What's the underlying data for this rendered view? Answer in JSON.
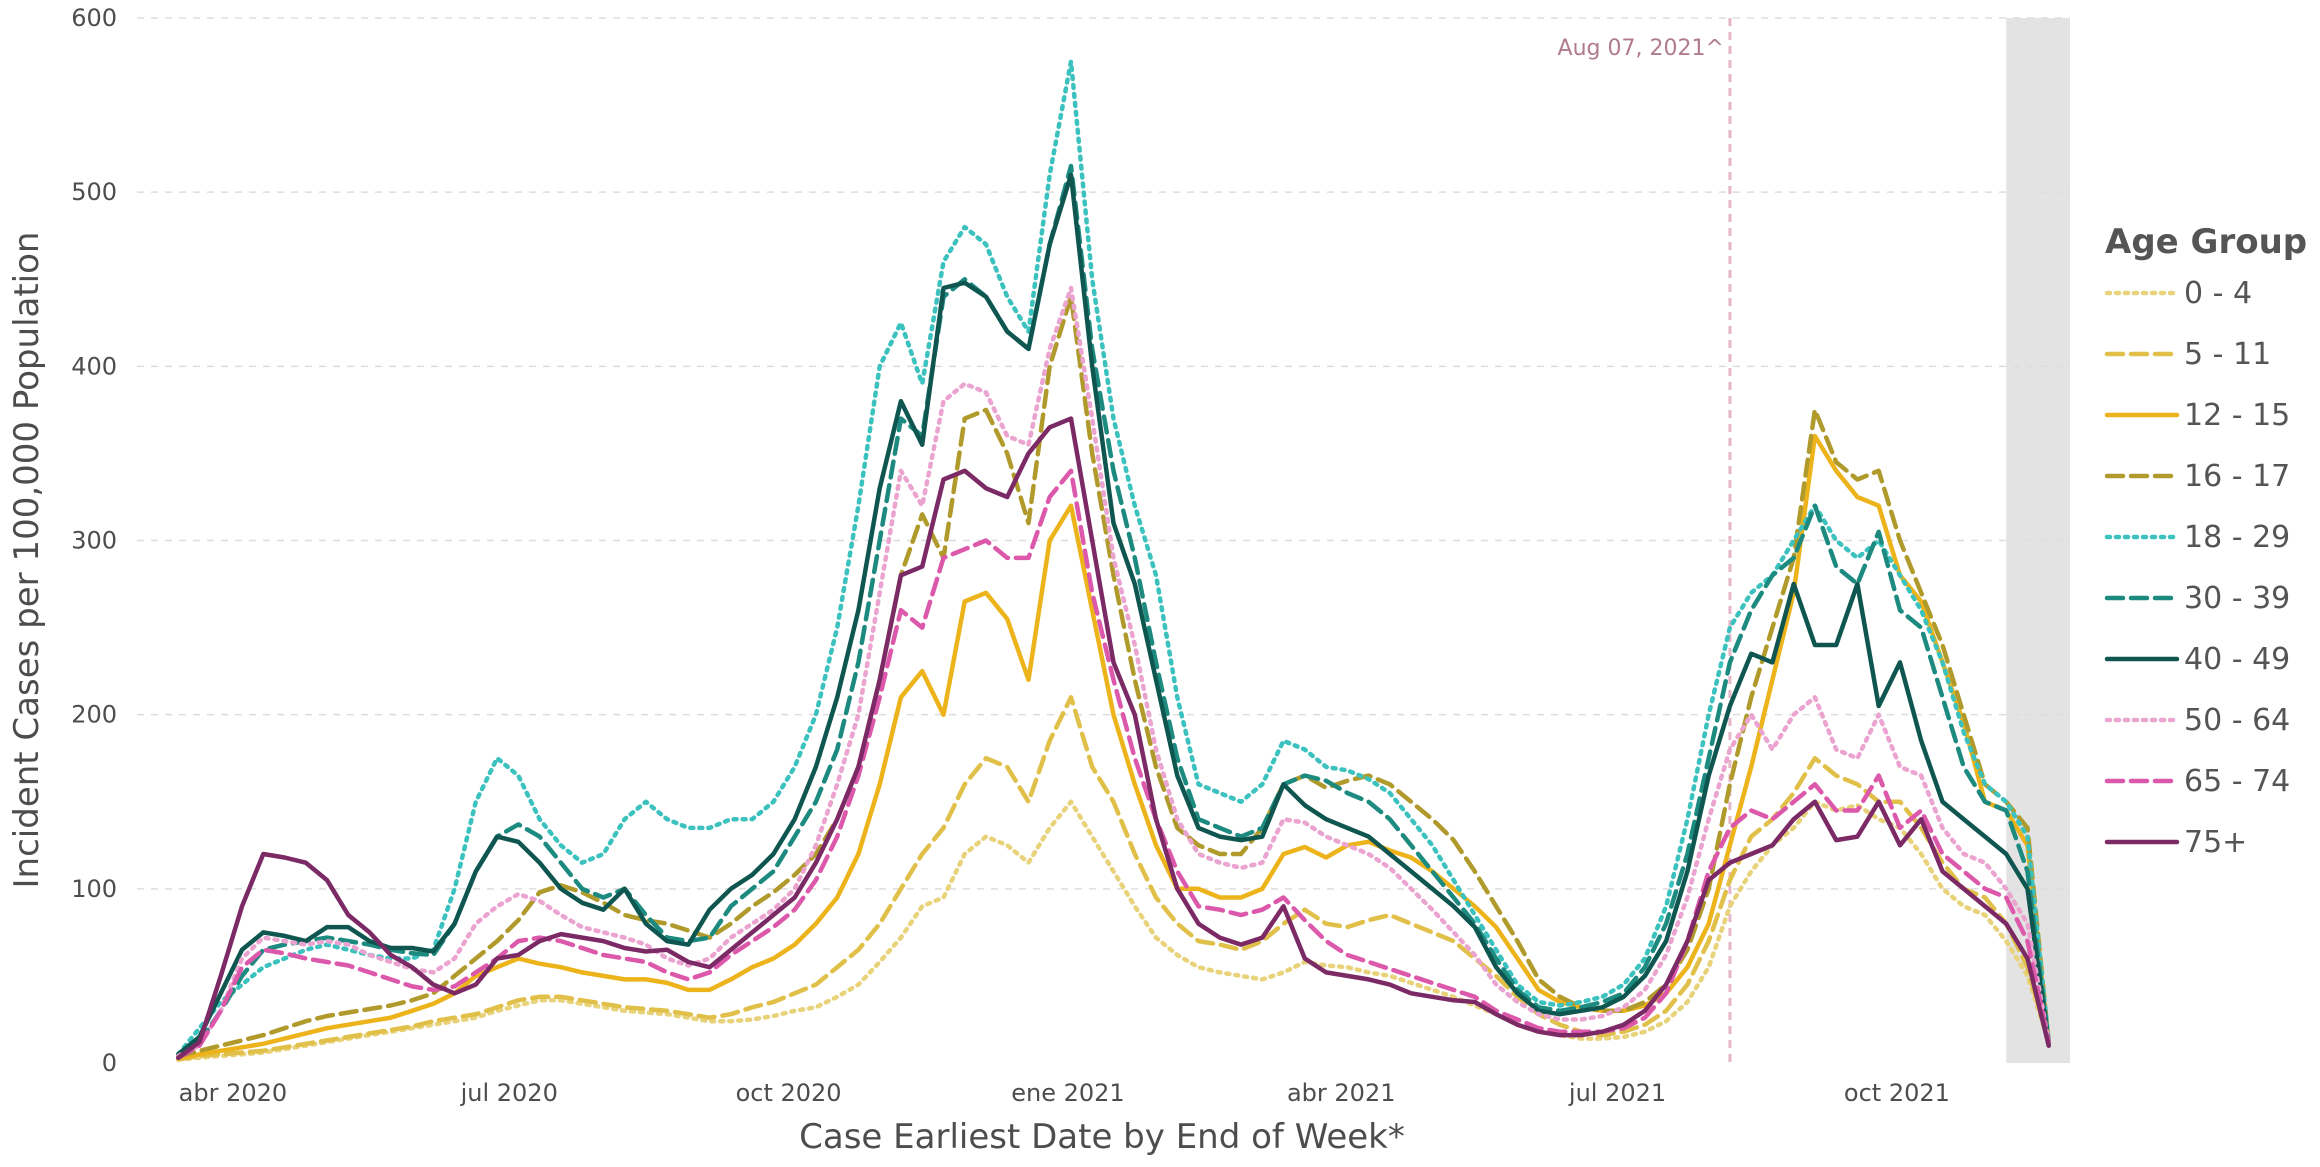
{
  "chart_data": {
    "type": "line",
    "title": "",
    "xlabel": "Case Earliest Date by End of Week*",
    "ylabel": "Incident Cases per 100,000 Population",
    "ylim": [
      0,
      600
    ],
    "xlim": [
      "2020-03-07",
      "2021-11-27"
    ],
    "y_ticks": [
      0,
      100,
      200,
      300,
      400,
      500,
      600
    ],
    "x_ticks": [
      {
        "date": "2020-04-01",
        "label": "abr 2020"
      },
      {
        "date": "2020-07-01",
        "label": "jul 2020"
      },
      {
        "date": "2020-10-01",
        "label": "oct 2020"
      },
      {
        "date": "2021-01-01",
        "label": "ene 2021"
      },
      {
        "date": "2021-04-01",
        "label": "abr 2021"
      },
      {
        "date": "2021-07-01",
        "label": "jul 2021"
      },
      {
        "date": "2021-10-01",
        "label": "oct 2021"
      }
    ],
    "grid": true,
    "legend": {
      "title": "Age Group",
      "placement": "right"
    },
    "annotations": [
      {
        "type": "vertical-line",
        "date": "2021-08-07",
        "label": "Aug 07, 2021^",
        "color": "#e6b7c9"
      },
      {
        "type": "shaded-region",
        "start": "2021-11-06",
        "end": "2021-11-27",
        "color": "#e3e3e3"
      }
    ],
    "x": [
      "2020-03-14",
      "2020-03-21",
      "2020-03-28",
      "2020-04-04",
      "2020-04-11",
      "2020-04-18",
      "2020-04-25",
      "2020-05-02",
      "2020-05-09",
      "2020-05-16",
      "2020-05-23",
      "2020-05-30",
      "2020-06-06",
      "2020-06-13",
      "2020-06-20",
      "2020-06-27",
      "2020-07-04",
      "2020-07-11",
      "2020-07-18",
      "2020-07-25",
      "2020-08-01",
      "2020-08-08",
      "2020-08-15",
      "2020-08-22",
      "2020-08-29",
      "2020-09-05",
      "2020-09-12",
      "2020-09-19",
      "2020-09-26",
      "2020-10-03",
      "2020-10-10",
      "2020-10-17",
      "2020-10-24",
      "2020-10-31",
      "2020-11-07",
      "2020-11-14",
      "2020-11-21",
      "2020-11-28",
      "2020-12-05",
      "2020-12-12",
      "2020-12-19",
      "2020-12-26",
      "2021-01-02",
      "2021-01-09",
      "2021-01-16",
      "2021-01-23",
      "2021-01-30",
      "2021-02-06",
      "2021-02-13",
      "2021-02-20",
      "2021-02-27",
      "2021-03-06",
      "2021-03-13",
      "2021-03-20",
      "2021-03-27",
      "2021-04-03",
      "2021-04-10",
      "2021-04-17",
      "2021-04-24",
      "2021-05-01",
      "2021-05-08",
      "2021-05-15",
      "2021-05-22",
      "2021-05-29",
      "2021-06-05",
      "2021-06-12",
      "2021-06-19",
      "2021-06-26",
      "2021-07-03",
      "2021-07-10",
      "2021-07-17",
      "2021-07-24",
      "2021-07-31",
      "2021-08-07",
      "2021-08-14",
      "2021-08-21",
      "2021-08-28",
      "2021-09-04",
      "2021-09-11",
      "2021-09-18",
      "2021-09-25",
      "2021-10-02",
      "2021-10-09",
      "2021-10-16",
      "2021-10-23",
      "2021-10-30",
      "2021-11-06",
      "2021-11-13",
      "2021-11-20"
    ],
    "series": [
      {
        "name": "0 - 4",
        "color": "#e8d27a",
        "dash": "dotted",
        "values": [
          2,
          3,
          4,
          5,
          6,
          8,
          10,
          12,
          14,
          16,
          18,
          20,
          22,
          24,
          26,
          30,
          33,
          36,
          36,
          34,
          32,
          30,
          29,
          28,
          26,
          24,
          24,
          25,
          27,
          30,
          32,
          38,
          45,
          58,
          72,
          90,
          95,
          120,
          130,
          125,
          115,
          135,
          150,
          130,
          110,
          90,
          72,
          62,
          55,
          52,
          50,
          48,
          52,
          58,
          56,
          55,
          52,
          50,
          46,
          42,
          38,
          33,
          28,
          22,
          18,
          16,
          14,
          14,
          15,
          18,
          24,
          35,
          55,
          90,
          110,
          125,
          135,
          150,
          145,
          148,
          140,
          135,
          120,
          100,
          90,
          85,
          70,
          50,
          12
        ]
      },
      {
        "name": "5 - 11",
        "color": "#e1c04a",
        "dash": "dashed",
        "values": [
          2,
          4,
          5,
          6,
          7,
          9,
          11,
          13,
          15,
          17,
          19,
          21,
          24,
          26,
          28,
          32,
          36,
          38,
          38,
          36,
          34,
          32,
          31,
          30,
          28,
          26,
          28,
          32,
          35,
          40,
          45,
          55,
          65,
          80,
          100,
          120,
          135,
          160,
          175,
          170,
          150,
          185,
          210,
          170,
          150,
          120,
          95,
          80,
          70,
          68,
          65,
          70,
          80,
          88,
          80,
          78,
          82,
          85,
          80,
          75,
          70,
          60,
          50,
          38,
          28,
          22,
          18,
          16,
          18,
          22,
          30,
          45,
          70,
          105,
          130,
          140,
          155,
          175,
          165,
          160,
          150,
          150,
          135,
          115,
          100,
          95,
          80,
          55,
          12
        ]
      },
      {
        "name": "12 - 15",
        "color": "#ecb31b",
        "dash": "solid",
        "values": [
          3,
          5,
          7,
          9,
          11,
          14,
          17,
          20,
          22,
          24,
          26,
          30,
          34,
          40,
          50,
          55,
          60,
          57,
          55,
          52,
          50,
          48,
          48,
          46,
          42,
          42,
          48,
          55,
          60,
          68,
          80,
          95,
          120,
          160,
          210,
          225,
          200,
          265,
          270,
          255,
          220,
          300,
          320,
          260,
          200,
          160,
          125,
          100,
          100,
          95,
          95,
          100,
          120,
          124,
          118,
          125,
          127,
          122,
          118,
          110,
          100,
          90,
          78,
          60,
          42,
          35,
          32,
          30,
          30,
          33,
          40,
          55,
          80,
          125,
          170,
          220,
          270,
          360,
          340,
          325,
          320,
          280,
          265,
          230,
          195,
          150,
          145,
          125,
          12
        ]
      },
      {
        "name": "16 - 17",
        "color": "#b19a2c",
        "dash": "dashed",
        "values": [
          4,
          7,
          10,
          13,
          16,
          20,
          24,
          27,
          29,
          31,
          33,
          36,
          40,
          50,
          60,
          70,
          82,
          98,
          102,
          98,
          92,
          85,
          82,
          80,
          76,
          72,
          80,
          90,
          98,
          108,
          120,
          140,
          170,
          220,
          280,
          315,
          290,
          370,
          375,
          350,
          310,
          400,
          440,
          350,
          280,
          220,
          170,
          135,
          125,
          120,
          120,
          135,
          160,
          165,
          158,
          162,
          165,
          160,
          150,
          140,
          128,
          110,
          90,
          70,
          48,
          38,
          32,
          30,
          30,
          35,
          45,
          65,
          100,
          160,
          210,
          250,
          290,
          375,
          345,
          335,
          340,
          300,
          270,
          240,
          200,
          160,
          150,
          135,
          12
        ]
      },
      {
        "name": "18 - 29",
        "color": "#3bc2be",
        "dash": "dotted",
        "values": [
          5,
          20,
          35,
          45,
          55,
          60,
          65,
          68,
          65,
          62,
          60,
          60,
          65,
          100,
          150,
          175,
          165,
          140,
          125,
          115,
          120,
          140,
          150,
          140,
          135,
          135,
          140,
          140,
          150,
          170,
          200,
          250,
          320,
          400,
          425,
          390,
          460,
          480,
          470,
          440,
          420,
          510,
          575,
          450,
          370,
          320,
          280,
          210,
          160,
          155,
          150,
          160,
          185,
          180,
          170,
          168,
          163,
          155,
          140,
          125,
          105,
          85,
          65,
          45,
          35,
          33,
          35,
          38,
          45,
          60,
          90,
          140,
          200,
          250,
          270,
          280,
          300,
          320,
          300,
          290,
          300,
          280,
          260,
          230,
          190,
          160,
          150,
          130,
          12
        ]
      },
      {
        "name": "30 - 39",
        "color": "#1d8a80",
        "dash": "dashed",
        "values": [
          4,
          12,
          30,
          50,
          65,
          68,
          70,
          72,
          70,
          68,
          65,
          63,
          62,
          80,
          110,
          130,
          137,
          130,
          115,
          100,
          95,
          100,
          85,
          72,
          70,
          72,
          90,
          100,
          110,
          130,
          150,
          180,
          230,
          300,
          370,
          360,
          440,
          450,
          440,
          420,
          410,
          470,
          515,
          410,
          340,
          290,
          230,
          175,
          140,
          135,
          130,
          135,
          160,
          165,
          162,
          155,
          150,
          140,
          125,
          110,
          95,
          80,
          60,
          42,
          32,
          30,
          32,
          35,
          40,
          55,
          80,
          120,
          175,
          230,
          260,
          280,
          290,
          320,
          285,
          275,
          305,
          260,
          250,
          210,
          170,
          150,
          145,
          110,
          12
        ]
      },
      {
        "name": "40 - 49",
        "color": "#0f5650",
        "dash": "solid",
        "values": [
          5,
          15,
          40,
          65,
          75,
          73,
          70,
          78,
          78,
          70,
          66,
          66,
          64,
          80,
          110,
          130,
          127,
          115,
          100,
          92,
          88,
          100,
          80,
          70,
          68,
          88,
          100,
          108,
          120,
          140,
          170,
          210,
          260,
          330,
          380,
          355,
          445,
          448,
          440,
          420,
          410,
          470,
          510,
          400,
          310,
          275,
          220,
          165,
          135,
          130,
          128,
          130,
          160,
          148,
          140,
          135,
          130,
          120,
          110,
          100,
          90,
          78,
          55,
          40,
          30,
          28,
          30,
          32,
          38,
          50,
          70,
          110,
          165,
          205,
          235,
          230,
          275,
          240,
          240,
          275,
          205,
          230,
          185,
          150,
          140,
          130,
          120,
          100,
          10
        ]
      },
      {
        "name": "50 - 64",
        "color": "#eba3d0",
        "dash": "dotted",
        "values": [
          4,
          10,
          30,
          60,
          72,
          70,
          68,
          70,
          68,
          62,
          58,
          54,
          52,
          60,
          80,
          90,
          97,
          93,
          85,
          78,
          75,
          72,
          68,
          60,
          56,
          60,
          72,
          80,
          88,
          100,
          125,
          160,
          200,
          270,
          340,
          320,
          380,
          390,
          385,
          360,
          355,
          410,
          445,
          370,
          290,
          240,
          180,
          140,
          120,
          115,
          112,
          115,
          140,
          138,
          130,
          125,
          120,
          112,
          100,
          88,
          75,
          62,
          45,
          35,
          28,
          25,
          25,
          27,
          32,
          42,
          62,
          95,
          140,
          180,
          200,
          180,
          200,
          210,
          180,
          175,
          200,
          170,
          165,
          135,
          120,
          115,
          100,
          80,
          12
        ]
      },
      {
        "name": "65 - 74",
        "color": "#dc58aa",
        "dash": "dashed",
        "values": [
          3,
          10,
          30,
          55,
          65,
          63,
          60,
          58,
          56,
          52,
          48,
          44,
          42,
          44,
          52,
          60,
          70,
          72,
          70,
          66,
          62,
          60,
          58,
          52,
          48,
          52,
          62,
          70,
          78,
          88,
          105,
          130,
          165,
          210,
          260,
          250,
          290,
          295,
          300,
          290,
          290,
          325,
          340,
          270,
          220,
          175,
          140,
          110,
          90,
          88,
          85,
          88,
          95,
          82,
          70,
          62,
          58,
          54,
          50,
          46,
          42,
          38,
          30,
          25,
          20,
          18,
          18,
          18,
          20,
          26,
          40,
          70,
          110,
          135,
          145,
          140,
          150,
          160,
          145,
          145,
          165,
          135,
          145,
          120,
          110,
          100,
          95,
          70,
          12
        ]
      },
      {
        "name": "75+",
        "color": "#7b2a66",
        "dash": "solid",
        "values": [
          3,
          12,
          50,
          90,
          120,
          118,
          115,
          105,
          85,
          75,
          62,
          55,
          45,
          40,
          45,
          60,
          62,
          70,
          74,
          72,
          70,
          66,
          64,
          65,
          58,
          55,
          65,
          75,
          85,
          95,
          115,
          140,
          170,
          220,
          280,
          285,
          335,
          340,
          330,
          325,
          350,
          365,
          370,
          300,
          230,
          200,
          140,
          100,
          80,
          72,
          68,
          72,
          90,
          60,
          52,
          50,
          48,
          45,
          40,
          38,
          36,
          35,
          28,
          22,
          18,
          16,
          16,
          18,
          22,
          30,
          45,
          70,
          105,
          115,
          120,
          125,
          140,
          150,
          128,
          130,
          150,
          125,
          140,
          110,
          100,
          90,
          80,
          60,
          10
        ]
      }
    ]
  }
}
